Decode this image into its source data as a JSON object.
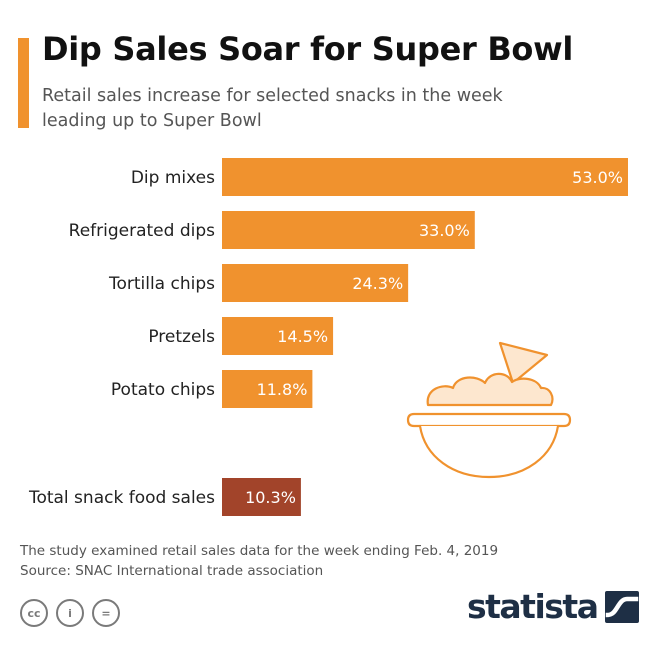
{
  "header": {
    "title": "Dip Sales Soar for Super Bowl",
    "subtitle": "Retail sales increase for selected snacks in the week leading up to Super Bowl"
  },
  "colors": {
    "accent": "#f0922e",
    "bar": "#f0922e",
    "total_bar": "#a2442a",
    "label_text": "#222222",
    "value_text": "#ffffff",
    "icon_stroke": "#f0922e",
    "food_fill": "#fde7cf",
    "brand": "#1e2f45"
  },
  "chart_data": {
    "type": "bar",
    "orientation": "horizontal",
    "categories": [
      "Dip mixes",
      "Refrigerated dips",
      "Tortilla chips",
      "Pretzels",
      "Potato chips",
      "Total snack food sales"
    ],
    "values": [
      53.0,
      33.0,
      24.3,
      14.5,
      11.8,
      10.3
    ],
    "value_labels": [
      "53.0%",
      "33.0%",
      "24.3%",
      "14.5%",
      "11.8%",
      "10.3%"
    ],
    "highlight": "Total snack food sales",
    "unit": "%",
    "xlabel": "",
    "ylabel": "",
    "xlim": [
      0,
      53
    ],
    "grid": false,
    "legend": "none"
  },
  "illustration": {
    "icon": "bowl-of-dip-with-chip-icon"
  },
  "footer": {
    "note": "The study examined retail sales data for the week ending Feb. 4, 2019",
    "source": "Source: SNAC International trade association",
    "license_icons": [
      "creative-commons-icon",
      "attribution-icon",
      "no-derivatives-icon"
    ],
    "license_glyphs": [
      "cc",
      "i",
      "="
    ],
    "brand_name": "statista",
    "brand_icon": "statista-logo-icon"
  }
}
